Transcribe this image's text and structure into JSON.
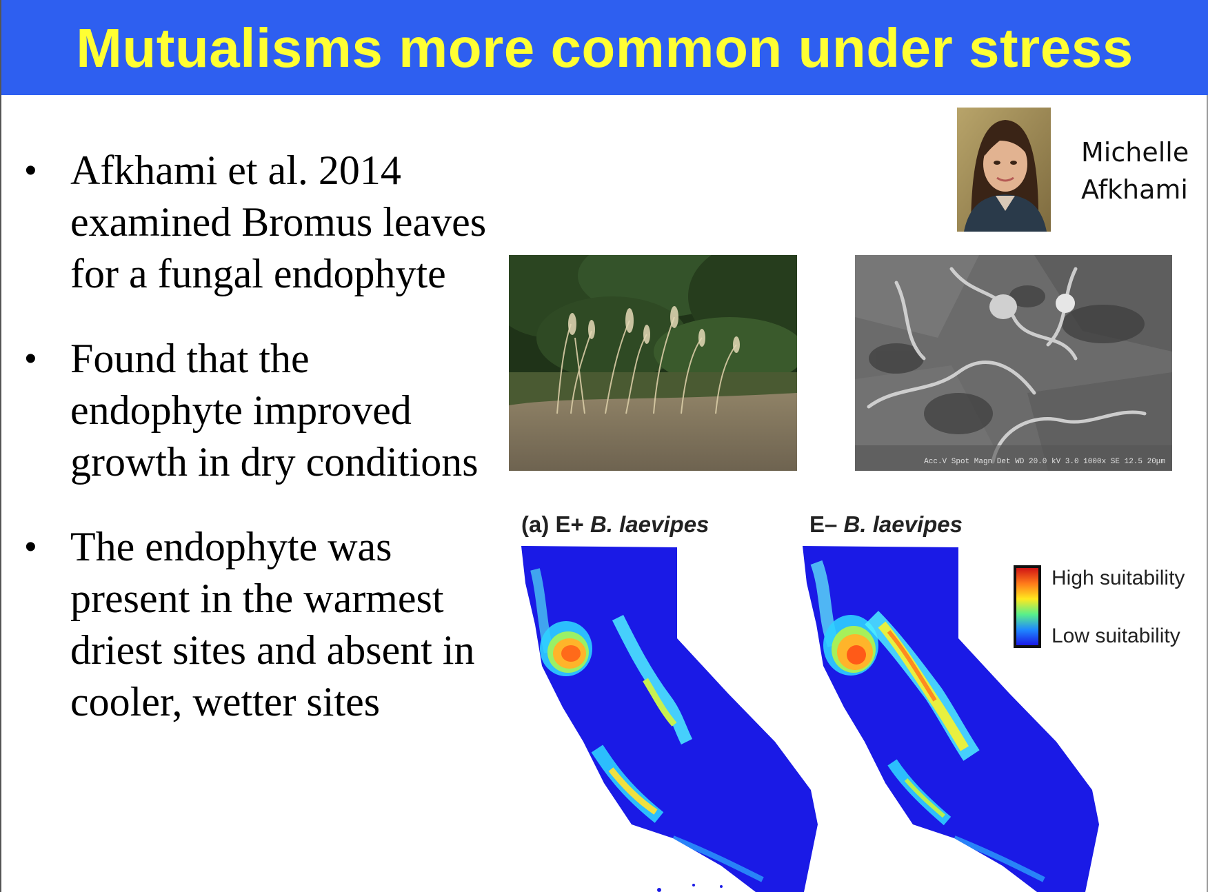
{
  "slide": {
    "title": "Mutualisms more common under stress",
    "bullets": [
      {
        "text": "Afkhami et al. 2014 examined Bromus leaves for a fungal endophyte"
      },
      {
        "text": "Found that the endophyte improved growth in dry conditions"
      },
      {
        "text": "The endophyte was present in the warmest driest sites and absent in cooler, wetter sites"
      }
    ],
    "bullet_symbol": "•"
  },
  "portrait": {
    "name": "Michelle Afkhami"
  },
  "sem_scale_text": "Acc.V Spot Magn Det WD 20.0 kV 3.0 1000x SE 12.5 20μm",
  "maps": {
    "left_prefix": "(a) E+",
    "left_species": "B. laevipes",
    "right_prefix": "E–",
    "right_species": "B. laevipes",
    "legend_high": "High suitability",
    "legend_low": "Low suitability"
  },
  "colors": {
    "header": "#2e5ff0",
    "title": "#ffff33",
    "map_base": "#1a1ae6"
  }
}
